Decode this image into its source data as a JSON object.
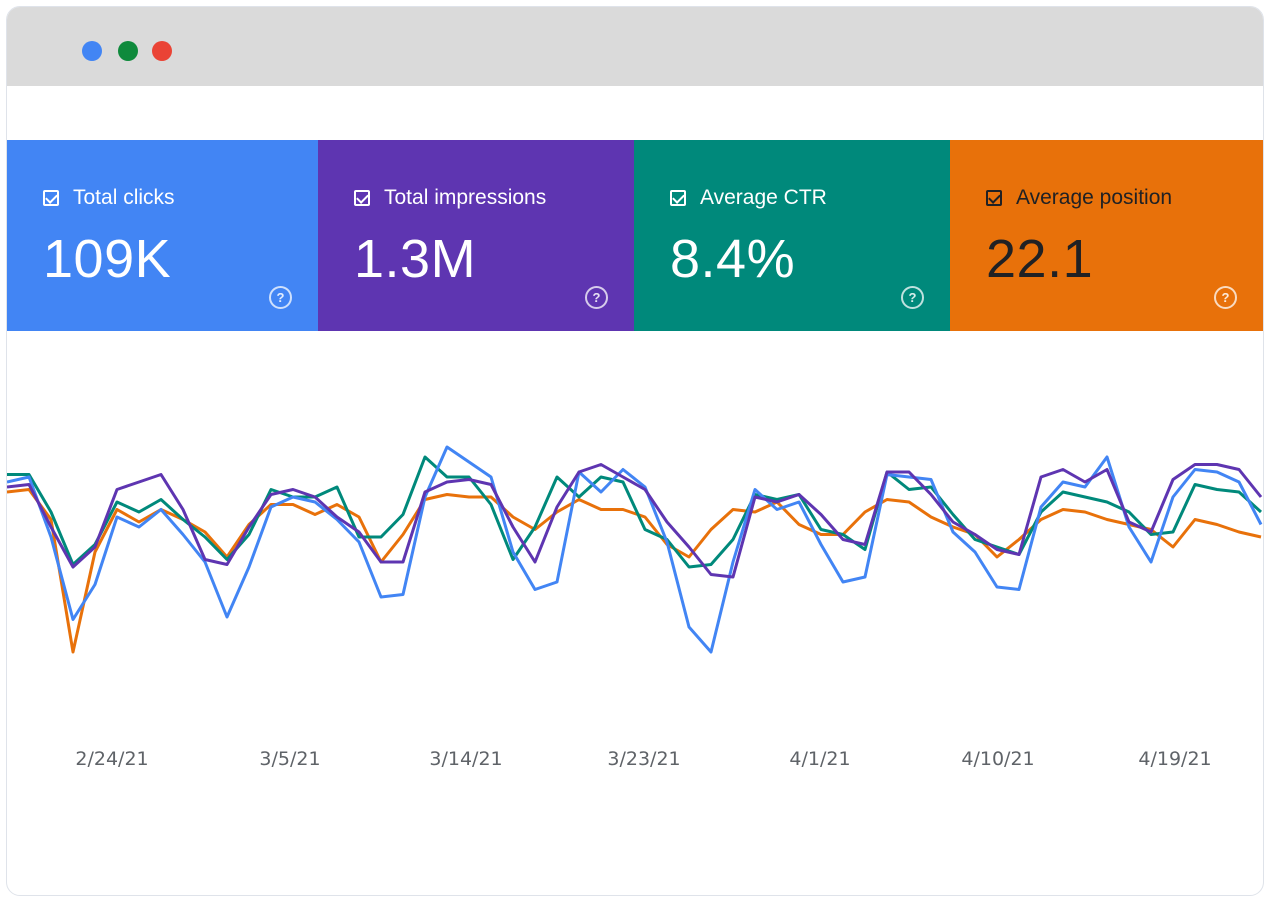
{
  "window": {
    "traffic_lights": [
      "blue",
      "green",
      "red"
    ]
  },
  "metrics": [
    {
      "label": "Total clicks",
      "value": "109K",
      "color": "#4285f4",
      "text_color": "#ffffff",
      "checked": true
    },
    {
      "label": "Total impressions",
      "value": "1.3M",
      "color": "#5e35b1",
      "text_color": "#ffffff",
      "checked": true
    },
    {
      "label": "Average CTR",
      "value": "8.4%",
      "color": "#00897b",
      "text_color": "#ffffff",
      "checked": true
    },
    {
      "label": "Average position",
      "value": "22.1",
      "color": "#e8710a",
      "text_color": "#202124",
      "checked": true
    }
  ],
  "help_icon": "?",
  "chart_data": {
    "type": "line",
    "x_labels": [
      "2/24/21",
      "3/5/21",
      "3/14/21",
      "3/23/21",
      "4/1/21",
      "4/10/21",
      "4/19/21"
    ],
    "grid": false,
    "series": [
      {
        "metric": "Total clicks",
        "color": "#4285f4",
        "values": [
          78,
          80,
          56,
          23,
          37,
          64,
          60,
          67,
          57,
          46,
          24,
          44,
          68,
          72,
          70,
          63,
          54,
          32,
          33,
          72,
          92,
          86,
          80,
          50,
          35,
          38,
          82,
          74,
          83,
          76,
          54,
          20,
          10,
          46,
          75,
          67,
          70,
          53,
          38,
          40,
          81,
          80,
          79,
          58,
          50,
          36,
          35,
          68,
          78,
          76,
          88,
          60,
          46,
          72,
          83,
          82,
          78,
          61
        ]
      },
      {
        "metric": "Total impressions",
        "color": "#5e35b1",
        "values": [
          76,
          77,
          60,
          44,
          52,
          75,
          78,
          81,
          67,
          47,
          45,
          60,
          73,
          75,
          72,
          64,
          58,
          46,
          46,
          74,
          78,
          79,
          77,
          60,
          46,
          68,
          82,
          85,
          80,
          75,
          62,
          52,
          41,
          40,
          72,
          70,
          73,
          65,
          55,
          53,
          82,
          82,
          73,
          62,
          57,
          51,
          49,
          80,
          83,
          78,
          83,
          62,
          58,
          79,
          85,
          85,
          83,
          72
        ]
      },
      {
        "metric": "Average CTR",
        "color": "#00897b",
        "values": [
          81,
          81,
          66,
          45,
          53,
          70,
          66,
          71,
          63,
          56,
          47,
          57,
          75,
          72,
          72,
          76,
          56,
          56,
          65,
          88,
          80,
          80,
          69,
          47,
          60,
          80,
          72,
          80,
          78,
          59,
          55,
          44,
          45,
          55,
          73,
          71,
          73,
          59,
          57,
          51,
          82,
          75,
          76,
          65,
          55,
          52,
          49,
          66,
          74,
          72,
          70,
          66,
          57,
          58,
          77,
          75,
          74,
          66
        ]
      },
      {
        "metric": "Average position",
        "color": "#e8710a",
        "values": [
          74,
          75,
          63,
          10,
          50,
          67,
          62,
          67,
          63,
          58,
          48,
          61,
          69,
          69,
          65,
          69,
          64,
          46,
          57,
          71,
          73,
          72,
          72,
          64,
          59,
          66,
          71,
          67,
          67,
          64,
          53,
          48,
          59,
          67,
          66,
          70,
          61,
          57,
          57,
          66,
          71,
          70,
          64,
          60,
          57,
          48,
          55,
          63,
          67,
          66,
          63,
          61,
          59,
          52,
          63,
          61,
          58,
          56
        ]
      }
    ]
  }
}
